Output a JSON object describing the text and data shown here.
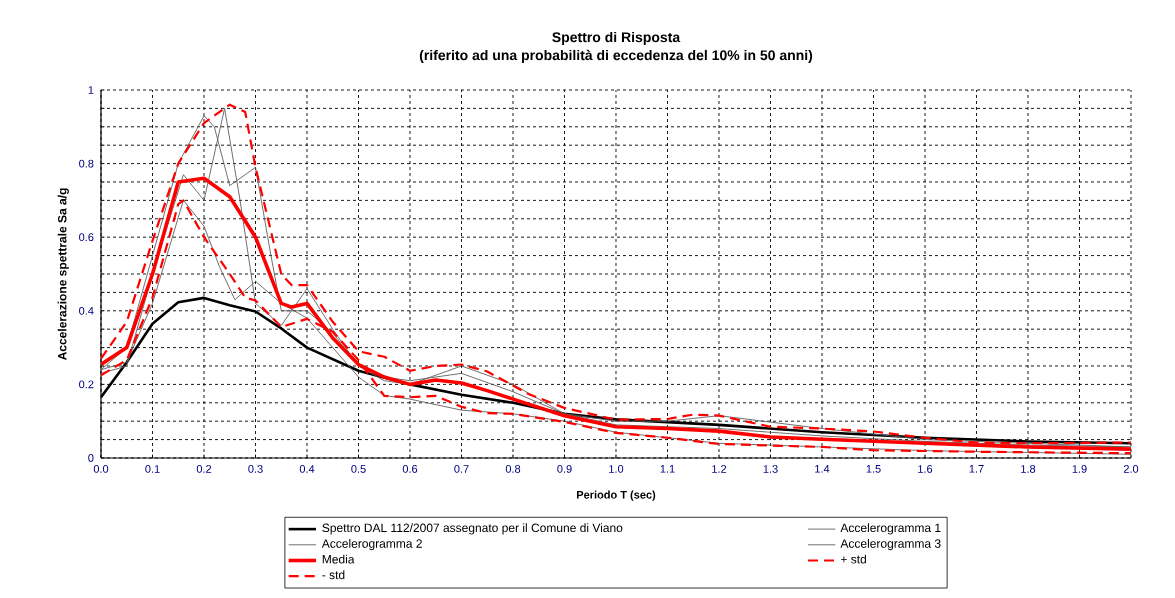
{
  "chart_data": {
    "type": "line",
    "title": "Spettro di Risposta",
    "subtitle": "(riferito ad una probabilità di eccedenza del 10% in 50 anni)",
    "xlabel": "Periodo T (sec)",
    "ylabel": "Accelerazione spettrale Sa a/g",
    "xlim": [
      0,
      2
    ],
    "xticks": [
      {
        "value": 0,
        "label": "0.0"
      },
      0.1,
      0.2,
      0.3,
      0.4,
      0.5,
      0.6,
      0.7,
      0.8,
      0.9,
      {
        "value": 1,
        "label": "1.0"
      },
      1.1,
      1.2,
      1.3,
      1.4,
      1.5,
      1.6,
      1.7,
      1.8,
      1.9,
      {
        "value": 2,
        "label": "2.0"
      }
    ],
    "ylim": [
      0,
      1
    ],
    "yticks": [
      0,
      {
        "value": 0.05,
        "label": null
      },
      {
        "value": 0.1,
        "label": null
      },
      {
        "value": 0.15,
        "label": null
      },
      0.2,
      {
        "value": 0.25,
        "label": null
      },
      {
        "value": 0.3,
        "label": null
      },
      {
        "value": 0.35,
        "label": null
      },
      0.4,
      {
        "value": 0.45,
        "label": null
      },
      {
        "value": 0.5,
        "label": null
      },
      {
        "value": 0.55,
        "label": null
      },
      0.6,
      {
        "value": 0.65,
        "label": null
      },
      {
        "value": 0.7,
        "label": null
      },
      {
        "value": 0.75,
        "label": null
      },
      0.8,
      {
        "value": 0.85,
        "label": null
      },
      {
        "value": 0.9,
        "label": null
      },
      {
        "value": 0.95,
        "label": null
      },
      1
    ],
    "grid": true,
    "legend": "bottom",
    "series": [
      {
        "name": "Spettro DAL 112/2007 assegnato per il Comune di Viano",
        "color": "#000000",
        "line_style": "solid",
        "x": [
          0,
          0.05,
          0.1,
          0.15,
          0.2,
          0.25,
          0.3,
          0.35,
          0.4,
          0.5,
          0.6,
          0.7,
          0.8,
          0.9,
          1.0,
          1.2,
          1.4,
          1.6,
          1.8,
          2.0
        ],
        "values": [
          0.165,
          0.26,
          0.365,
          0.423,
          0.435,
          0.415,
          0.398,
          0.352,
          0.3,
          0.237,
          0.2,
          0.172,
          0.15,
          0.12,
          0.105,
          0.09,
          0.07,
          0.055,
          0.045,
          0.04
        ]
      },
      {
        "name": "Accelerogramma 1",
        "color": "#606060",
        "line_style": "solid",
        "x": [
          0,
          0.05,
          0.1,
          0.15,
          0.2,
          0.22,
          0.25,
          0.28,
          0.3,
          0.33,
          0.35,
          0.4,
          0.45,
          0.5,
          0.55,
          0.6,
          0.7,
          0.8,
          0.9,
          1.0,
          1.1,
          1.2,
          1.4,
          1.6,
          1.8,
          2.0
        ],
        "values": [
          0.24,
          0.3,
          0.55,
          0.8,
          0.93,
          0.9,
          0.74,
          0.77,
          0.79,
          0.55,
          0.4,
          0.4,
          0.34,
          0.25,
          0.21,
          0.2,
          0.25,
          0.2,
          0.12,
          0.1,
          0.1,
          0.115,
          0.08,
          0.05,
          0.04,
          0.03
        ]
      },
      {
        "name": "Accelerogramma 2",
        "color": "#606060",
        "line_style": "solid",
        "x": [
          0,
          0.05,
          0.1,
          0.16,
          0.2,
          0.24,
          0.27,
          0.3,
          0.35,
          0.4,
          0.45,
          0.5,
          0.55,
          0.6,
          0.7,
          0.8,
          0.9,
          1.0,
          1.2,
          1.4,
          1.6,
          1.8,
          2.0
        ],
        "values": [
          0.23,
          0.25,
          0.5,
          0.77,
          0.7,
          0.95,
          0.7,
          0.42,
          0.36,
          0.46,
          0.35,
          0.25,
          0.22,
          0.21,
          0.23,
          0.18,
          0.12,
          0.09,
          0.08,
          0.06,
          0.045,
          0.035,
          0.03
        ]
      },
      {
        "name": "Accelerogramma 3",
        "color": "#606060",
        "line_style": "solid",
        "x": [
          0,
          0.05,
          0.1,
          0.16,
          0.2,
          0.23,
          0.26,
          0.3,
          0.35,
          0.4,
          0.45,
          0.5,
          0.55,
          0.6,
          0.7,
          0.8,
          0.9,
          1.0,
          1.2,
          1.4,
          1.6,
          1.8,
          2.0
        ],
        "values": [
          0.24,
          0.26,
          0.42,
          0.7,
          0.63,
          0.52,
          0.43,
          0.48,
          0.42,
          0.38,
          0.3,
          0.22,
          0.17,
          0.16,
          0.13,
          0.12,
          0.1,
          0.07,
          0.04,
          0.03,
          0.02,
          0.015,
          0.01
        ]
      },
      {
        "name": "Media",
        "color": "#ff0000",
        "line_style": "solid",
        "x": [
          0,
          0.05,
          0.1,
          0.15,
          0.2,
          0.25,
          0.3,
          0.35,
          0.37,
          0.4,
          0.45,
          0.5,
          0.55,
          0.6,
          0.65,
          0.7,
          0.75,
          0.8,
          0.9,
          1.0,
          1.1,
          1.2,
          1.3,
          1.4,
          1.6,
          1.8,
          2.0
        ],
        "values": [
          0.254,
          0.3,
          0.5,
          0.75,
          0.76,
          0.71,
          0.6,
          0.42,
          0.41,
          0.42,
          0.326,
          0.254,
          0.22,
          0.2,
          0.212,
          0.204,
          0.183,
          0.16,
          0.115,
          0.085,
          0.08,
          0.073,
          0.057,
          0.051,
          0.04,
          0.03,
          0.024
        ]
      },
      {
        "name": "+ std",
        "color": "#ff0000",
        "line_style": "dashed",
        "x": [
          0,
          0.05,
          0.1,
          0.15,
          0.2,
          0.25,
          0.28,
          0.3,
          0.35,
          0.37,
          0.4,
          0.45,
          0.5,
          0.55,
          0.6,
          0.65,
          0.7,
          0.75,
          0.83,
          0.9,
          1.0,
          1.1,
          1.15,
          1.2,
          1.3,
          1.4,
          1.5,
          1.6,
          1.7,
          1.8,
          2.0
        ],
        "values": [
          0.27,
          0.37,
          0.59,
          0.8,
          0.91,
          0.96,
          0.94,
          0.79,
          0.5,
          0.47,
          0.47,
          0.37,
          0.29,
          0.275,
          0.237,
          0.25,
          0.254,
          0.235,
          0.174,
          0.136,
          0.104,
          0.106,
          0.118,
          0.115,
          0.085,
          0.08,
          0.072,
          0.055,
          0.042,
          0.04,
          0.042
        ]
      },
      {
        "name": "- std",
        "color": "#ff0000",
        "line_style": "dashed",
        "x": [
          0,
          0.05,
          0.1,
          0.15,
          0.16,
          0.2,
          0.25,
          0.28,
          0.3,
          0.35,
          0.4,
          0.45,
          0.5,
          0.55,
          0.6,
          0.65,
          0.7,
          0.75,
          0.8,
          0.9,
          1.0,
          1.1,
          1.2,
          1.3,
          1.4,
          1.5,
          1.7,
          2.0
        ],
        "values": [
          0.225,
          0.266,
          0.436,
          0.69,
          0.7,
          0.6,
          0.5,
          0.436,
          0.428,
          0.356,
          0.378,
          0.343,
          0.266,
          0.169,
          0.165,
          0.169,
          0.139,
          0.122,
          0.12,
          0.098,
          0.068,
          0.055,
          0.038,
          0.034,
          0.03,
          0.021,
          0.017,
          0.013
        ]
      }
    ]
  }
}
